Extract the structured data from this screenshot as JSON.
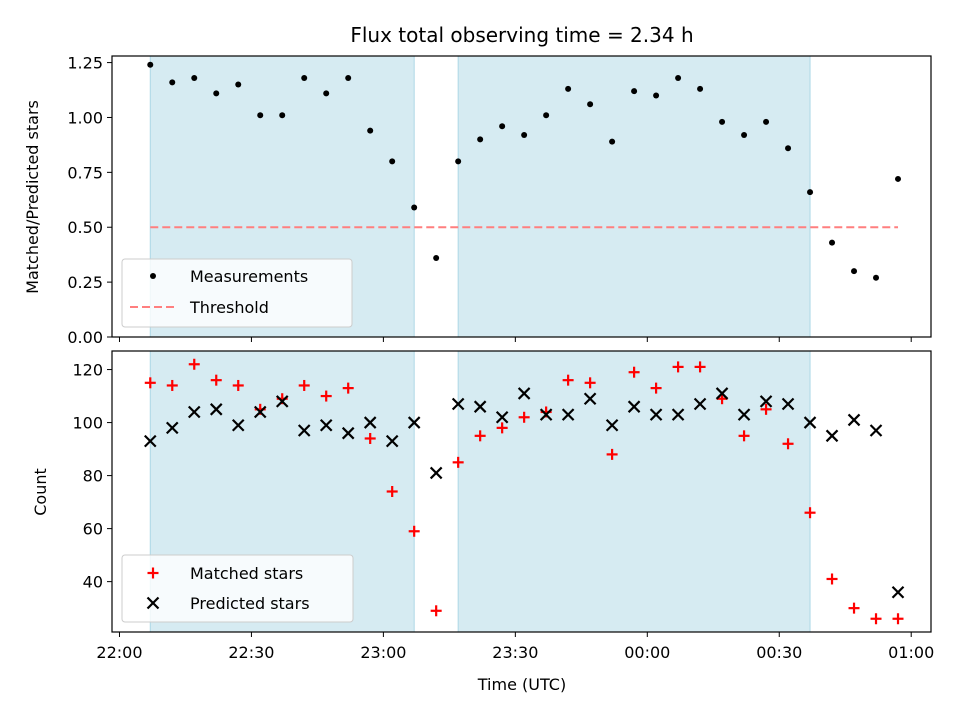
{
  "chart_data": [
    {
      "type": "scatter",
      "title": "Flux total observing time = 2.34 h",
      "xlabel": "",
      "ylabel": "Matched/Predicted stars",
      "ylim": [
        0,
        1.28
      ],
      "yticks": [
        "0.00",
        "0.25",
        "0.50",
        "0.75",
        "1.00",
        "1.25"
      ],
      "shaded_intervals": [
        [
          "22:07",
          "23:07"
        ],
        [
          "23:17",
          "00:37"
        ]
      ],
      "threshold": {
        "name": "Threshold",
        "value": 0.5,
        "x_range": [
          "22:07",
          "00:57"
        ],
        "color": "#ff7f7f"
      },
      "series": [
        {
          "name": "Measurements",
          "marker": "dot",
          "color": "#000000",
          "x": [
            "22:07",
            "22:12",
            "22:17",
            "22:22",
            "22:27",
            "22:32",
            "22:37",
            "22:42",
            "22:47",
            "22:52",
            "22:57",
            "23:02",
            "23:07",
            "23:12",
            "23:17",
            "23:22",
            "23:27",
            "23:32",
            "23:37",
            "23:42",
            "23:47",
            "23:52",
            "23:57",
            "00:02",
            "00:07",
            "00:12",
            "00:17",
            "00:22",
            "00:27",
            "00:32",
            "00:37",
            "00:42",
            "00:47",
            "00:52",
            "00:57"
          ],
          "values": [
            1.24,
            1.16,
            1.18,
            1.11,
            1.15,
            1.01,
            1.01,
            1.18,
            1.11,
            1.18,
            0.94,
            0.8,
            0.59,
            0.36,
            0.8,
            0.9,
            0.96,
            0.92,
            1.01,
            1.13,
            1.06,
            0.89,
            1.12,
            1.1,
            1.18,
            1.13,
            0.98,
            0.92,
            0.98,
            0.86,
            0.66,
            0.43,
            0.3,
            0.27,
            0.72
          ]
        }
      ],
      "legend": {
        "position": "lower-left",
        "entries": [
          "Measurements",
          "Threshold"
        ]
      },
      "grid": false
    },
    {
      "type": "scatter",
      "title": "",
      "xlabel": "Time (UTC)",
      "ylabel": "Count",
      "ylim": [
        21,
        127
      ],
      "yticks": [
        "40",
        "60",
        "80",
        "100",
        "120"
      ],
      "xticks": [
        "22:00",
        "22:30",
        "23:00",
        "23:30",
        "00:00",
        "00:30",
        "01:00"
      ],
      "shaded_intervals": [
        [
          "22:07",
          "23:07"
        ],
        [
          "23:17",
          "00:37"
        ]
      ],
      "series": [
        {
          "name": "Matched stars",
          "marker": "plus",
          "color": "#ff0000",
          "x": [
            "22:07",
            "22:12",
            "22:17",
            "22:22",
            "22:27",
            "22:32",
            "22:37",
            "22:42",
            "22:47",
            "22:52",
            "22:57",
            "23:02",
            "23:07",
            "23:12",
            "23:17",
            "23:22",
            "23:27",
            "23:32",
            "23:37",
            "23:42",
            "23:47",
            "23:52",
            "23:57",
            "00:02",
            "00:07",
            "00:12",
            "00:17",
            "00:22",
            "00:27",
            "00:32",
            "00:37",
            "00:42",
            "00:47",
            "00:52",
            "00:57"
          ],
          "values": [
            115,
            114,
            122,
            116,
            114,
            105,
            109,
            114,
            110,
            113,
            94,
            74,
            59,
            29,
            85,
            95,
            98,
            102,
            104,
            116,
            115,
            88,
            119,
            113,
            121,
            121,
            109,
            95,
            105,
            92,
            66,
            41,
            30,
            26,
            26
          ]
        },
        {
          "name": "Predicted stars",
          "marker": "x",
          "color": "#000000",
          "x": [
            "22:07",
            "22:12",
            "22:17",
            "22:22",
            "22:27",
            "22:32",
            "22:37",
            "22:42",
            "22:47",
            "22:52",
            "22:57",
            "23:02",
            "23:07",
            "23:12",
            "23:17",
            "23:22",
            "23:27",
            "23:32",
            "23:37",
            "23:42",
            "23:47",
            "23:52",
            "23:57",
            "00:02",
            "00:07",
            "00:12",
            "00:17",
            "00:22",
            "00:27",
            "00:32",
            "00:37",
            "00:42",
            "00:47",
            "00:52",
            "00:57"
          ],
          "values": [
            93,
            98,
            104,
            105,
            99,
            104,
            108,
            97,
            99,
            96,
            100,
            93,
            100,
            81,
            107,
            106,
            102,
            111,
            103,
            103,
            109,
            99,
            106,
            103,
            103,
            107,
            111,
            103,
            108,
            107,
            100,
            95,
            101,
            97,
            36
          ]
        }
      ],
      "legend": {
        "position": "lower-left",
        "entries": [
          "Matched stars",
          "Predicted stars"
        ]
      },
      "grid": false
    }
  ],
  "colors": {
    "shade": "#add8e6",
    "threshold": "#ff7f7f",
    "matched": "#ff0000",
    "predicted": "#000000"
  }
}
